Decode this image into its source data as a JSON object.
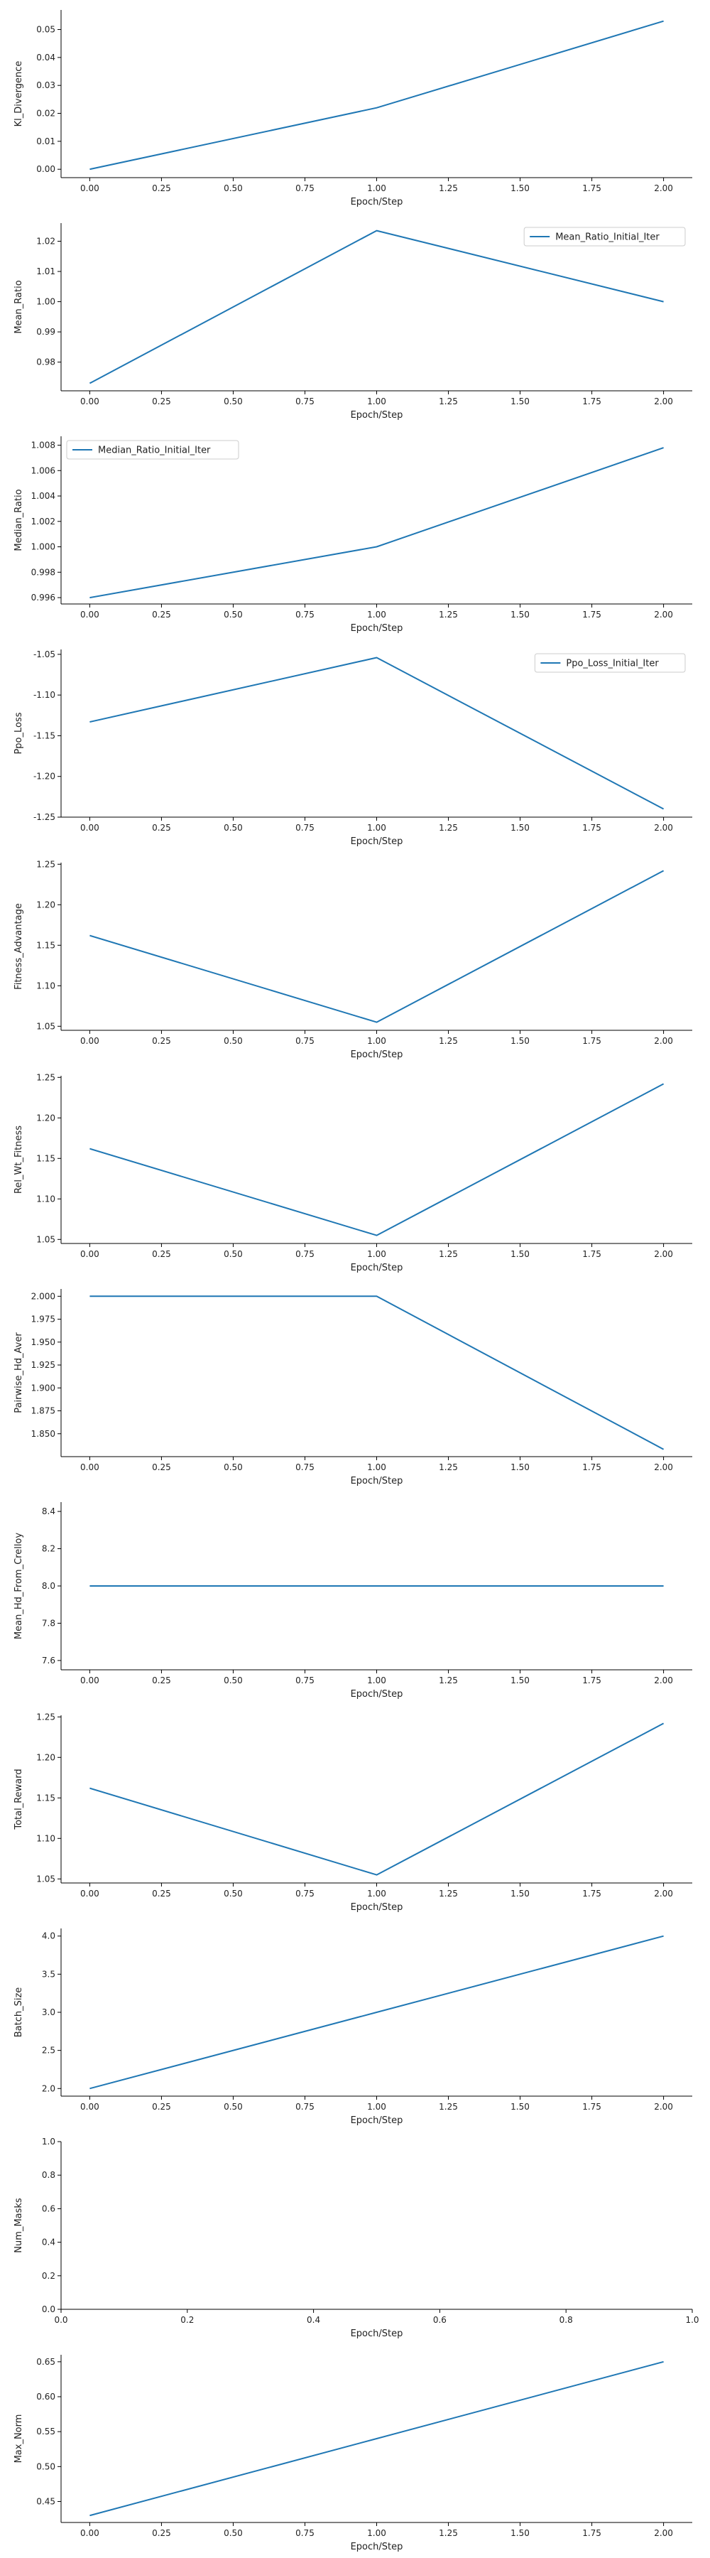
{
  "colors": {
    "line": "#1f77b4",
    "axis": "#000000",
    "legend_border": "#cccccc",
    "background": "#ffffff"
  },
  "chart_data": [
    {
      "type": "line",
      "ylabel": "Kl_Divergence",
      "xlabel": "Epoch/Step",
      "x": [
        0,
        1,
        2
      ],
      "series": [
        {
          "values": [
            0.0,
            0.022,
            0.053
          ]
        }
      ],
      "xlim": [
        -0.1,
        2.1
      ],
      "ylim": [
        -0.003,
        0.057
      ],
      "xticks": [
        "0.00",
        "0.25",
        "0.50",
        "0.75",
        "1.00",
        "1.25",
        "1.50",
        "1.75",
        "2.00"
      ],
      "yticks": [
        "0.00",
        "0.01",
        "0.02",
        "0.03",
        "0.04",
        "0.05"
      ],
      "legend": null
    },
    {
      "type": "line",
      "ylabel": "Mean_Ratio",
      "xlabel": "Epoch/Step",
      "x": [
        0,
        1,
        2
      ],
      "series": [
        {
          "name": "Mean_Ratio_Initial_Iter",
          "values": [
            0.973,
            1.0235,
            1.0
          ]
        }
      ],
      "xlim": [
        -0.1,
        2.1
      ],
      "ylim": [
        0.9705,
        1.026
      ],
      "xticks": [
        "0.00",
        "0.25",
        "0.50",
        "0.75",
        "1.00",
        "1.25",
        "1.50",
        "1.75",
        "2.00"
      ],
      "yticks": [
        "0.98",
        "0.99",
        "1.00",
        "1.01",
        "1.02"
      ],
      "legend": "upper right"
    },
    {
      "type": "line",
      "ylabel": "Median_Ratio",
      "xlabel": "Epoch/Step",
      "x": [
        0,
        1,
        2
      ],
      "series": [
        {
          "name": "Median_Ratio_Initial_Iter",
          "values": [
            0.996,
            1.0,
            1.0078
          ]
        }
      ],
      "xlim": [
        -0.1,
        2.1
      ],
      "ylim": [
        0.9955,
        1.0087
      ],
      "xticks": [
        "0.00",
        "0.25",
        "0.50",
        "0.75",
        "1.00",
        "1.25",
        "1.50",
        "1.75",
        "2.00"
      ],
      "yticks": [
        "0.996",
        "0.998",
        "1.000",
        "1.002",
        "1.004",
        "1.006",
        "1.008"
      ],
      "legend": "upper left"
    },
    {
      "type": "line",
      "ylabel": "Ppo_Loss",
      "xlabel": "Epoch/Step",
      "x": [
        0,
        1,
        2
      ],
      "series": [
        {
          "name": "Ppo_Loss_Initial_Iter",
          "values": [
            -1.133,
            -1.054,
            -1.24
          ]
        }
      ],
      "xlim": [
        -0.1,
        2.1
      ],
      "ylim": [
        -1.25,
        -1.044
      ],
      "xticks": [
        "0.00",
        "0.25",
        "0.50",
        "0.75",
        "1.00",
        "1.25",
        "1.50",
        "1.75",
        "2.00"
      ],
      "yticks": [
        "-1.05",
        "-1.10",
        "-1.15",
        "-1.20",
        "-1.25"
      ],
      "legend": "upper right"
    },
    {
      "type": "line",
      "ylabel": "Fitness_Advantage",
      "xlabel": "Epoch/Step",
      "x": [
        0,
        1,
        2
      ],
      "series": [
        {
          "values": [
            1.162,
            1.055,
            1.242
          ]
        }
      ],
      "xlim": [
        -0.1,
        2.1
      ],
      "ylim": [
        1.045,
        1.252
      ],
      "xticks": [
        "0.00",
        "0.25",
        "0.50",
        "0.75",
        "1.00",
        "1.25",
        "1.50",
        "1.75",
        "2.00"
      ],
      "yticks": [
        "1.05",
        "1.10",
        "1.15",
        "1.20",
        "1.25"
      ],
      "legend": null
    },
    {
      "type": "line",
      "ylabel": "Rel_Wt_Fitness",
      "xlabel": "Epoch/Step",
      "x": [
        0,
        1,
        2
      ],
      "series": [
        {
          "values": [
            1.162,
            1.055,
            1.242
          ]
        }
      ],
      "xlim": [
        -0.1,
        2.1
      ],
      "ylim": [
        1.045,
        1.252
      ],
      "xticks": [
        "0.00",
        "0.25",
        "0.50",
        "0.75",
        "1.00",
        "1.25",
        "1.50",
        "1.75",
        "2.00"
      ],
      "yticks": [
        "1.05",
        "1.10",
        "1.15",
        "1.20",
        "1.25"
      ],
      "legend": null
    },
    {
      "type": "line",
      "ylabel": "Pairwise_Hd_Aver",
      "xlabel": "Epoch/Step",
      "x": [
        0,
        1,
        2
      ],
      "series": [
        {
          "values": [
            2.0,
            2.0,
            1.833
          ]
        }
      ],
      "xlim": [
        -0.1,
        2.1
      ],
      "ylim": [
        1.825,
        2.008
      ],
      "xticks": [
        "0.00",
        "0.25",
        "0.50",
        "0.75",
        "1.00",
        "1.25",
        "1.50",
        "1.75",
        "2.00"
      ],
      "yticks": [
        "2.000",
        "1.975",
        "1.950",
        "1.925",
        "1.900",
        "1.875",
        "1.850"
      ],
      "legend": null
    },
    {
      "type": "line",
      "ylabel": "Mean_Hd_From_Crelloy",
      "xlabel": "Epoch/Step",
      "x": [
        0,
        1,
        2
      ],
      "series": [
        {
          "values": [
            8.0,
            8.0,
            8.0
          ]
        }
      ],
      "xlim": [
        -0.1,
        2.1
      ],
      "ylim": [
        7.55,
        8.45
      ],
      "xticks": [
        "0.00",
        "0.25",
        "0.50",
        "0.75",
        "1.00",
        "1.25",
        "1.50",
        "1.75",
        "2.00"
      ],
      "yticks": [
        "7.6",
        "7.8",
        "8.0",
        "8.2",
        "8.4"
      ],
      "legend": null
    },
    {
      "type": "line",
      "ylabel": "Total_Reward",
      "xlabel": "Epoch/Step",
      "x": [
        0,
        1,
        2
      ],
      "series": [
        {
          "values": [
            1.162,
            1.055,
            1.242
          ]
        }
      ],
      "xlim": [
        -0.1,
        2.1
      ],
      "ylim": [
        1.045,
        1.252
      ],
      "xticks": [
        "0.00",
        "0.25",
        "0.50",
        "0.75",
        "1.00",
        "1.25",
        "1.50",
        "1.75",
        "2.00"
      ],
      "yticks": [
        "1.05",
        "1.10",
        "1.15",
        "1.20",
        "1.25"
      ],
      "legend": null
    },
    {
      "type": "line",
      "ylabel": "Batch_Size",
      "xlabel": "Epoch/Step",
      "x": [
        0,
        1,
        2
      ],
      "series": [
        {
          "values": [
            2.0,
            3.0,
            4.0
          ]
        }
      ],
      "xlim": [
        -0.1,
        2.1
      ],
      "ylim": [
        1.9,
        4.1
      ],
      "xticks": [
        "0.00",
        "0.25",
        "0.50",
        "0.75",
        "1.00",
        "1.25",
        "1.50",
        "1.75",
        "2.00"
      ],
      "yticks": [
        "2.0",
        "2.5",
        "3.0",
        "3.5",
        "4.0"
      ],
      "legend": null
    },
    {
      "type": "line",
      "ylabel": "Num_Masks",
      "xlabel": "Epoch/Step",
      "x": [],
      "series": [],
      "xlim": [
        0.0,
        1.0
      ],
      "ylim": [
        0.0,
        1.0
      ],
      "xticks": [
        "0.0",
        "0.2",
        "0.4",
        "0.6",
        "0.8",
        "1.0"
      ],
      "yticks": [
        "0.0",
        "0.2",
        "0.4",
        "0.6",
        "0.8",
        "1.0"
      ],
      "legend": null
    },
    {
      "type": "line",
      "ylabel": "Max_Norm",
      "xlabel": "Epoch/Step",
      "x": [
        0,
        1,
        2
      ],
      "series": [
        {
          "values": [
            0.43,
            0.54,
            0.65
          ]
        }
      ],
      "xlim": [
        -0.1,
        2.1
      ],
      "ylim": [
        0.42,
        0.66
      ],
      "xticks": [
        "0.00",
        "0.25",
        "0.50",
        "0.75",
        "1.00",
        "1.25",
        "1.50",
        "1.75",
        "2.00"
      ],
      "yticks": [
        "0.45",
        "0.50",
        "0.55",
        "0.60",
        "0.65"
      ],
      "legend": null
    }
  ]
}
